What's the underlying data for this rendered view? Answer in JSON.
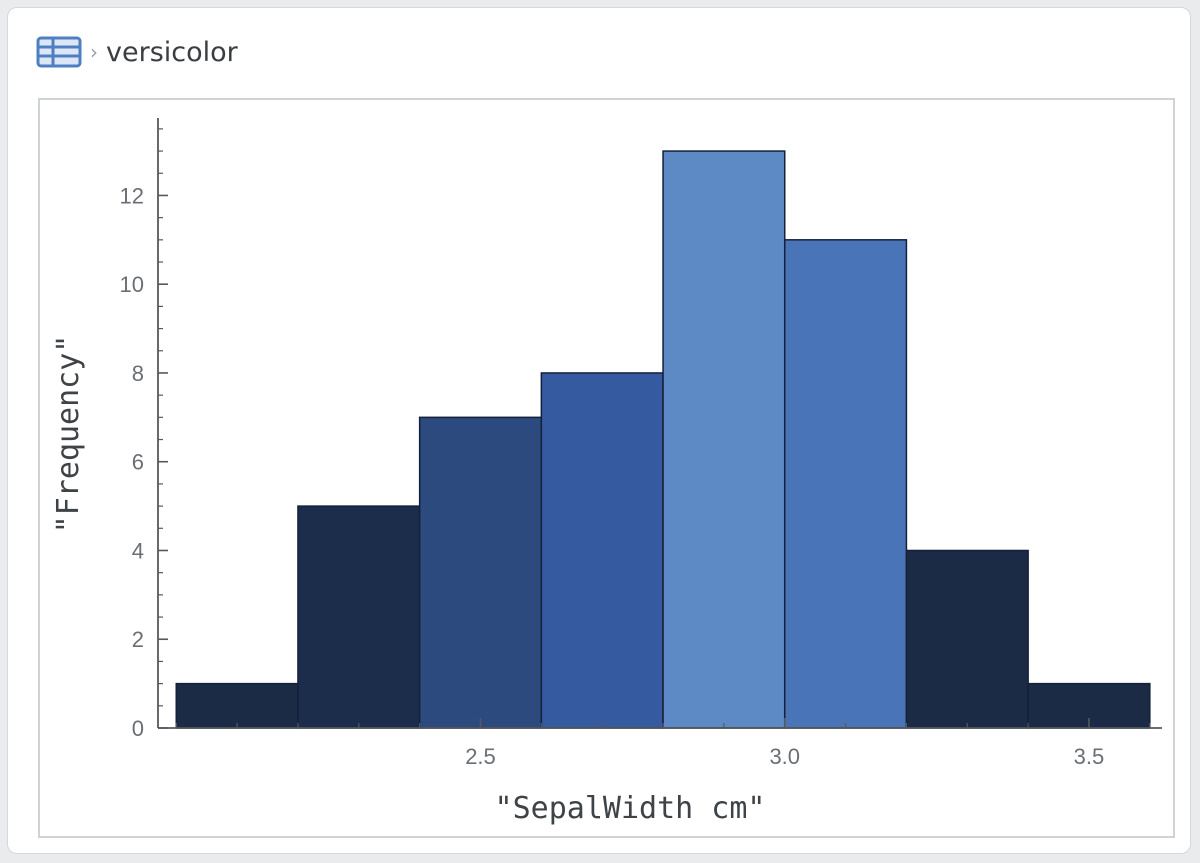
{
  "breadcrumb": {
    "icon": "table-icon",
    "separator": "›",
    "label": "versicolor"
  },
  "chart_data": {
    "type": "bar",
    "bins": [
      {
        "start": 2.0,
        "end": 2.2,
        "value": 1,
        "color": "#1b2a45"
      },
      {
        "start": 2.2,
        "end": 2.4,
        "value": 5,
        "color": "#1c2d4c"
      },
      {
        "start": 2.4,
        "end": 2.6,
        "value": 7,
        "color": "#2c4a7d"
      },
      {
        "start": 2.6,
        "end": 2.8,
        "value": 8,
        "color": "#355aa0"
      },
      {
        "start": 2.8,
        "end": 3.0,
        "value": 13,
        "color": "#5d8ac4"
      },
      {
        "start": 3.0,
        "end": 3.2,
        "value": 11,
        "color": "#4a74b8"
      },
      {
        "start": 3.2,
        "end": 3.4,
        "value": 4,
        "color": "#1b2a45"
      },
      {
        "start": 3.4,
        "end": 3.6,
        "value": 1,
        "color": "#1b2a45"
      }
    ],
    "xlabel": "\"SepalWidth cm\"",
    "ylabel": "\"Frequency\"",
    "xlim": [
      1.97,
      3.62
    ],
    "ylim": [
      0,
      13.7
    ],
    "x_ticks": [
      2.5,
      3.0,
      3.5
    ],
    "x_tick_labels": [
      "2.5",
      "3.0",
      "3.5"
    ],
    "y_ticks": [
      0,
      2,
      4,
      6,
      8,
      10,
      12
    ],
    "y_tick_labels": [
      "0",
      "2",
      "4",
      "6",
      "8",
      "10",
      "12"
    ],
    "x_minor_step": 0.1,
    "y_minor_step": 0.5,
    "grid": false,
    "legend": "none"
  }
}
